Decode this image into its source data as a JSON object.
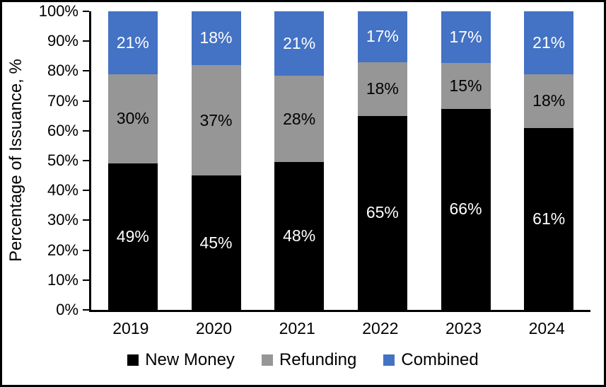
{
  "chart_data": {
    "type": "bar",
    "stacked": true,
    "percent_stacked": true,
    "title": "",
    "ylabel": "Percentage of Issuance, %",
    "xlabel": "",
    "categories": [
      "2019",
      "2020",
      "2021",
      "2022",
      "2023",
      "2024"
    ],
    "series": [
      {
        "name": "New Money",
        "color": "#000000",
        "label_color": "#ffffff",
        "values": [
          49,
          45,
          48,
          65,
          66,
          61
        ]
      },
      {
        "name": "Refunding",
        "color": "#969696",
        "label_color": "#000000",
        "values": [
          30,
          37,
          28,
          18,
          15,
          18
        ]
      },
      {
        "name": "Combined",
        "color": "#4472c4",
        "label_color": "#ffffff",
        "values": [
          21,
          18,
          21,
          17,
          17,
          21
        ]
      }
    ],
    "value_suffix": "%",
    "y_ticks": [
      "0%",
      "10%",
      "20%",
      "30%",
      "40%",
      "50%",
      "60%",
      "70%",
      "80%",
      "90%",
      "100%"
    ],
    "ylim": [
      0,
      100
    ],
    "grid": false,
    "legend_position": "bottom",
    "axis_color": "#000000",
    "background_color": "#ffffff"
  }
}
